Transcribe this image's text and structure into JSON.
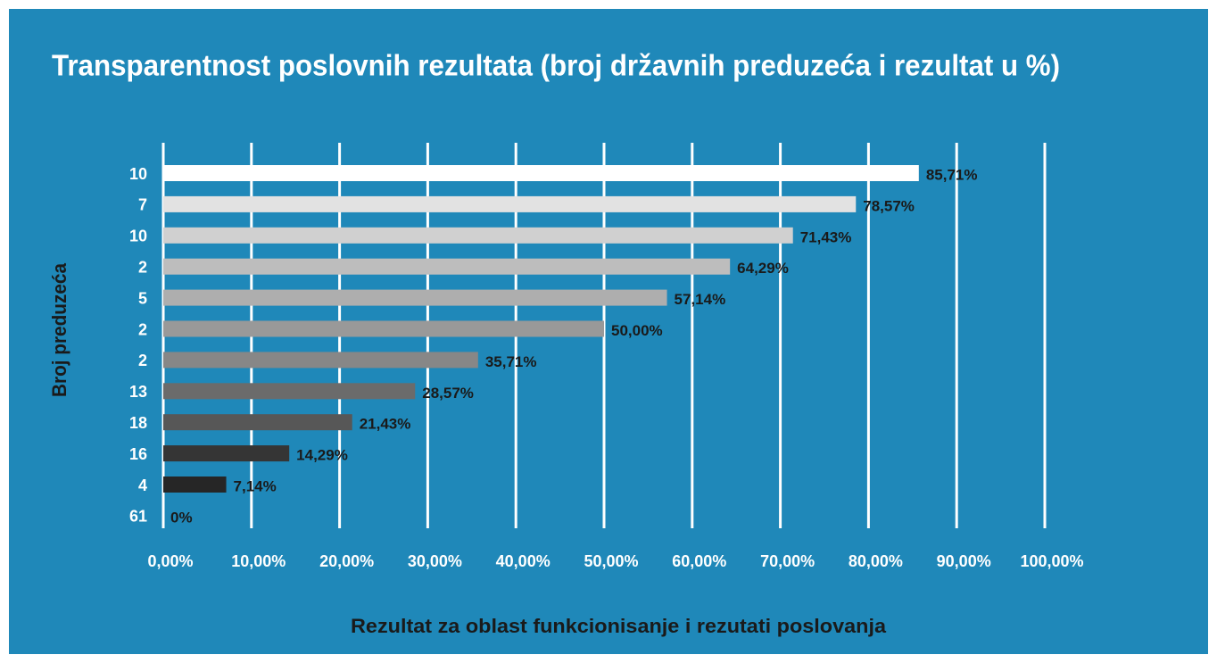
{
  "chart_data": {
    "type": "barh",
    "title": "Transparentnost poslovnih rezultata  (broj državnih preduzeća i rezultat u %)",
    "xlabel": "Rezultat  za oblast funkcionisanje i rezutati poslovanja",
    "ylabel": "Broj preduzeća",
    "categories": [
      "10",
      "7",
      "10",
      "2",
      "5",
      "2",
      "2",
      "13",
      "18",
      "16",
      "4",
      "61"
    ],
    "values": [
      85.71,
      78.57,
      71.43,
      64.29,
      57.14,
      50.0,
      35.71,
      28.57,
      21.43,
      14.29,
      7.14,
      0
    ],
    "value_labels": [
      "85,71%",
      "78,57%",
      "71,43%",
      "64,29%",
      "57,14%",
      "50,00%",
      "35,71%",
      "28,57%",
      "21,43%",
      "14,29%",
      "7,14%",
      "0%"
    ],
    "colors": [
      "#ffffff",
      "#e2e2e2",
      "#d0d0d0",
      "#bdbdbd",
      "#aeaeae",
      "#999999",
      "#878787",
      "#6b6b6b",
      "#575757",
      "#353535",
      "#262626",
      "#1a1a1a"
    ],
    "xlim": [
      0,
      100
    ],
    "xticks": [
      {
        "value": 0,
        "label": "0,00%"
      },
      {
        "value": 10,
        "label": "10,00%"
      },
      {
        "value": 20,
        "label": "20,00%"
      },
      {
        "value": 30,
        "label": "30,00%"
      },
      {
        "value": 40,
        "label": "40,00%"
      },
      {
        "value": 50,
        "label": "50,00%"
      },
      {
        "value": 60,
        "label": "60,00%"
      },
      {
        "value": 70,
        "label": "70,00%"
      },
      {
        "value": 80,
        "label": "80,00%"
      },
      {
        "value": 90,
        "label": "90,00%"
      },
      {
        "value": 100,
        "label": "100,00%"
      }
    ],
    "grid": true
  }
}
